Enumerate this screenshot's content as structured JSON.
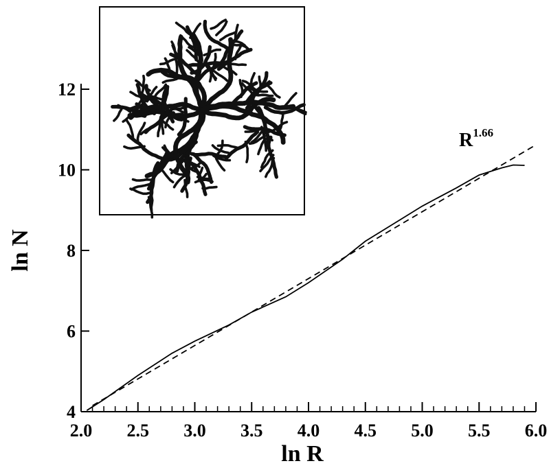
{
  "chart_data": {
    "type": "line",
    "xlabel": "ln R",
    "ylabel": "ln N",
    "annotation": {
      "text": "R",
      "superscript": "1.66"
    },
    "xlim": [
      2,
      6
    ],
    "ylim": [
      4,
      12
    ],
    "xticks": [
      {
        "value": 2,
        "label": "2.0"
      },
      2.5,
      {
        "value": 3,
        "label": "3.0"
      },
      3.5,
      {
        "value": 4,
        "label": "4.0"
      },
      4.5,
      {
        "value": 5,
        "label": "5.0"
      },
      5.5,
      {
        "value": 6,
        "label": "6.0"
      }
    ],
    "xminorticks": [
      2.1,
      2.2,
      2.3,
      2.4,
      2.6,
      2.7,
      2.8,
      2.9,
      3.1,
      3.2,
      3.3,
      3.4,
      3.6,
      3.7,
      3.8,
      3.9,
      4.1,
      4.2,
      4.3,
      4.4,
      4.6,
      4.7,
      4.8,
      4.9,
      5.1,
      5.2,
      5.3,
      5.4,
      5.6,
      5.7,
      5.8,
      5.9
    ],
    "yticks": [
      4,
      6,
      8,
      10,
      12
    ],
    "series": [
      {
        "color": "#000000",
        "dash": false,
        "x": [
          2.05,
          2.2,
          2.5,
          2.8,
          3.0,
          3.3,
          3.5,
          3.8,
          4.0,
          4.3,
          4.5,
          4.8,
          5.0,
          5.3,
          5.5,
          5.7,
          5.8,
          5.9
        ],
        "values": [
          4.03,
          4.3,
          4.9,
          5.45,
          5.75,
          6.15,
          6.47,
          6.85,
          7.2,
          7.78,
          8.23,
          8.75,
          9.1,
          9.55,
          9.87,
          10.05,
          10.12,
          10.11
        ]
      },
      {
        "color": "#000000",
        "dash": true,
        "x": [
          2.1,
          6.0
        ],
        "values": [
          4.15,
          10.62
        ]
      }
    ]
  }
}
